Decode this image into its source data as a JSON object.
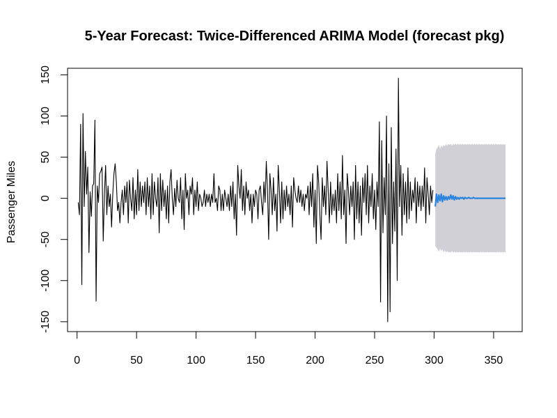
{
  "chart_data": {
    "type": "line",
    "title": "5-Year Forecast: Twice-Differenced ARIMA Model (forecast pkg)",
    "xlabel": "",
    "ylabel": "Passenger Miles",
    "xlim": [
      -8,
      374
    ],
    "ylim": [
      -162,
      158
    ],
    "x_ticks": [
      0,
      50,
      100,
      150,
      200,
      250,
      300,
      350
    ],
    "y_ticks": [
      -150,
      -100,
      -50,
      0,
      50,
      100,
      150
    ],
    "x_tick_labels": [
      "0",
      "50",
      "100",
      "150",
      "200",
      "250",
      "300",
      "350"
    ],
    "y_tick_labels": [
      "-150",
      "-100",
      "-50",
      "0",
      "50",
      "100",
      "150"
    ],
    "grid": false,
    "colors": {
      "history": "#000000",
      "forecast": "#2a84e0",
      "interval": "#d0d0d6"
    },
    "series": [
      {
        "role": "history",
        "x_start": 1,
        "x_step": 1,
        "values": [
          -5,
          -20,
          90,
          -105,
          103,
          -10,
          57,
          5,
          38,
          -66,
          8,
          -22,
          15,
          18,
          95,
          -125,
          15,
          -5,
          30,
          33,
          38,
          -52,
          5,
          40,
          -20,
          15,
          -10,
          5,
          -35,
          5,
          30,
          42,
          20,
          -15,
          -5,
          -30,
          -5,
          10,
          -20,
          15,
          -5,
          20,
          -30,
          22,
          0,
          -15,
          25,
          -25,
          10,
          -20,
          35,
          -15,
          20,
          -10,
          15,
          -5,
          20,
          -20,
          25,
          -10,
          15,
          -25,
          30,
          -20,
          20,
          0,
          -10,
          25,
          -42,
          30,
          -15,
          22,
          -10,
          10,
          -25,
          15,
          -30,
          20,
          35,
          0,
          -20,
          12,
          -10,
          22,
          0,
          -5,
          25,
          -25,
          10,
          -38,
          30,
          0,
          10,
          -20,
          15,
          5,
          25,
          -20,
          10,
          -10,
          20,
          -15,
          5,
          0,
          -10,
          -5,
          10,
          -10,
          5,
          -5,
          5,
          -10,
          5,
          -5,
          30,
          -5,
          0,
          -15,
          15,
          10,
          -15,
          5,
          -15,
          10,
          0,
          -10,
          5,
          -15,
          15,
          -10,
          20,
          -25,
          5,
          -45,
          40,
          15,
          0,
          35,
          -15,
          15,
          -20,
          20,
          0,
          10,
          -15,
          5,
          -30,
          5,
          -10,
          10,
          5,
          -25,
          10,
          15,
          -5,
          -20,
          20,
          -5,
          45,
          10,
          -50,
          30,
          10,
          -20,
          25,
          -15,
          5,
          -40,
          40,
          10,
          -30,
          20,
          -25,
          10,
          -15,
          15,
          -10,
          5,
          -20,
          15,
          -35,
          25,
          10,
          0,
          -5,
          15,
          -5,
          10,
          -10,
          5,
          -15,
          5,
          0,
          15,
          -20,
          20,
          -10,
          30,
          -35,
          10,
          -55,
          40,
          20,
          -20,
          -50,
          25,
          -10,
          15,
          -20,
          45,
          10,
          -30,
          20,
          -20,
          5,
          -15,
          10,
          -30,
          30,
          -15,
          20,
          -25,
          52,
          -20,
          10,
          -55,
          30,
          10,
          -20,
          15,
          -10,
          20,
          -50,
          40,
          -25,
          20,
          -30,
          15,
          -45,
          25,
          -5,
          30,
          -20,
          40,
          -30,
          15,
          -10,
          30,
          -25,
          10,
          -38,
          20,
          -10,
          93,
          -126,
          70,
          -42,
          25,
          -20,
          100,
          -150,
          42,
          -138,
          86,
          -55,
          20,
          -40,
          60,
          -100,
          146,
          -10,
          40,
          -45,
          30,
          -20,
          20,
          -30,
          37,
          -25,
          20,
          -15,
          10,
          -5,
          25,
          -30,
          20,
          -10,
          15,
          -15,
          15,
          -10,
          37,
          -30,
          25,
          5,
          -20,
          15,
          -5,
          10
        ]
      },
      {
        "role": "forecast",
        "x_start": 301,
        "x_step": 1,
        "values": [
          -10,
          5,
          -5,
          4,
          -3,
          5,
          -4,
          3,
          -2,
          2,
          -2,
          2,
          -1,
          4,
          -1,
          3,
          -2,
          2,
          -1,
          1,
          -1,
          1,
          0,
          1,
          -1,
          1,
          0,
          0,
          1,
          0,
          0,
          0,
          1,
          0,
          0,
          0,
          0,
          0,
          0,
          0,
          0,
          0,
          0,
          0,
          0,
          0,
          0,
          0,
          0,
          0,
          0,
          0,
          0,
          0,
          0,
          0,
          0,
          0,
          0,
          0
        ],
        "interval_upper": [
          55,
          60,
          62,
          65,
          60,
          64,
          62,
          65,
          63,
          66,
          64,
          66,
          65,
          66,
          64,
          66,
          65,
          66,
          65,
          66,
          65,
          66,
          65,
          66,
          65,
          66,
          65,
          66,
          65,
          66,
          65,
          66,
          65,
          66,
          65,
          66,
          65,
          66,
          65,
          66,
          65,
          66,
          65,
          66,
          65,
          66,
          65,
          66,
          65,
          66,
          65,
          66,
          65,
          66,
          65,
          66,
          65,
          66,
          65,
          66
        ],
        "interval_lower": [
          -58,
          -60,
          -62,
          -65,
          -61,
          -64,
          -62,
          -66,
          -63,
          -66,
          -64,
          -66,
          -65,
          -66,
          -64,
          -66,
          -65,
          -66,
          -65,
          -66,
          -65,
          -66,
          -65,
          -66,
          -65,
          -66,
          -65,
          -66,
          -65,
          -66,
          -65,
          -66,
          -65,
          -66,
          -65,
          -66,
          -65,
          -66,
          -65,
          -66,
          -65,
          -66,
          -65,
          -66,
          -65,
          -66,
          -65,
          -66,
          -65,
          -66,
          -65,
          -66,
          -65,
          -66,
          -65,
          -66,
          -65,
          -66,
          -65,
          -66
        ]
      }
    ]
  }
}
